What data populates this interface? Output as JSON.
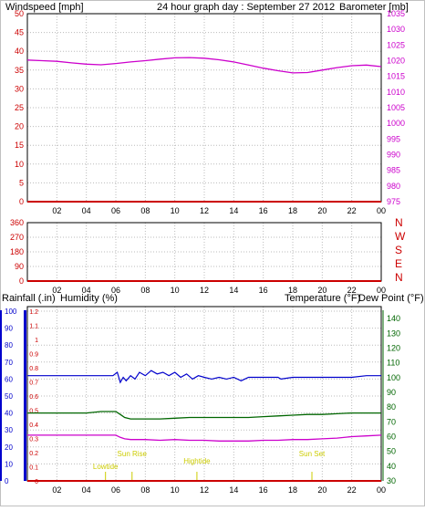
{
  "colors": {
    "windspeed": "#cc0000",
    "barometer": "#cc00cc",
    "title": "#0000cc",
    "direction": "#cc0000",
    "rainfall": "#cc0000",
    "humidity": "#0000cc",
    "temperature": "#006600",
    "dewpoint": "#cc00cc",
    "sun": "#cccc00"
  },
  "chart_data": [
    {
      "type": "line",
      "title": "24 hour graph day : September 27 2012",
      "ylabel_left": "Windspeed [mph]",
      "ylabel_right": "Barometer [mb]",
      "x_ticks": [
        "02",
        "04",
        "06",
        "08",
        "10",
        "12",
        "14",
        "16",
        "18",
        "20",
        "22",
        "00"
      ],
      "y_left_ticks": [
        "0",
        "5",
        "10",
        "15",
        "20",
        "25",
        "30",
        "35",
        "40",
        "45",
        "50"
      ],
      "y_left_lim": [
        0,
        50
      ],
      "y_right_ticks": [
        "975",
        "980",
        "985",
        "990",
        "995",
        "1000",
        "1005",
        "1010",
        "1015",
        "1020",
        "1025",
        "1030",
        "1035"
      ],
      "y_right_lim": [
        975,
        1035
      ],
      "grid": true,
      "series": [
        {
          "name": "Barometer",
          "x": [
            0,
            1,
            2,
            3,
            4,
            5,
            6,
            7,
            8,
            9,
            10,
            11,
            12,
            13,
            14,
            15,
            16,
            17,
            18,
            19,
            20,
            21,
            22,
            23,
            24
          ],
          "y": [
            1020.2,
            1020.0,
            1019.8,
            1019.3,
            1018.9,
            1018.7,
            1019.1,
            1019.6,
            1020.0,
            1020.5,
            1020.9,
            1021.0,
            1020.8,
            1020.3,
            1019.6,
            1018.6,
            1017.6,
            1016.8,
            1016.1,
            1016.2,
            1017.0,
            1017.8,
            1018.4,
            1018.6,
            1018.1
          ]
        },
        {
          "name": "Windspeed",
          "x": [
            0,
            24
          ],
          "y": [
            0,
            0
          ]
        }
      ]
    },
    {
      "type": "line",
      "ylabel_right": "N W S E N",
      "direction_labels": [
        "N",
        "W",
        "S",
        "E",
        "N"
      ],
      "x_ticks": [
        "02",
        "04",
        "06",
        "08",
        "10",
        "12",
        "14",
        "16",
        "18",
        "20",
        "22",
        "00"
      ],
      "y_ticks": [
        "0",
        "90",
        "180",
        "270",
        "360"
      ],
      "ylim": [
        0,
        360
      ],
      "grid": true,
      "series": [
        {
          "name": "Wind direction",
          "x": [
            0,
            24
          ],
          "y": [
            0,
            0
          ]
        }
      ]
    },
    {
      "type": "line",
      "ylabel_rainfall": "Rainfall (.in)",
      "ylabel_humidity": "Humidity (%)",
      "ylabel_temperature": "Temperature (°F)",
      "ylabel_dewpoint": "Dew Point (°F)",
      "x_ticks": [
        "02",
        "04",
        "06",
        "08",
        "10",
        "12",
        "14",
        "16",
        "18",
        "20",
        "22",
        "00"
      ],
      "humidity_ticks": [
        "0",
        "10",
        "20",
        "30",
        "40",
        "50",
        "60",
        "70",
        "80",
        "90",
        "100"
      ],
      "humidity_lim": [
        0,
        100
      ],
      "rain_ticks": [
        "0",
        "0.1",
        "0.2",
        "0.3",
        "0.4",
        "0.5",
        "0.6",
        "0.7",
        "0.8",
        "0.9",
        "1",
        "1.1",
        "1.2"
      ],
      "rain_lim": [
        0,
        1.2
      ],
      "temp_ticks": [
        "30",
        "40",
        "50",
        "60",
        "70",
        "80",
        "90",
        "100",
        "110",
        "120",
        "130",
        "140"
      ],
      "temp_lim": [
        30,
        145
      ],
      "grid": true,
      "annotations": [
        {
          "label": "Lowtide",
          "hour": 5.3
        },
        {
          "label": "Sun Rise",
          "hour": 7.1
        },
        {
          "label": "Hightide",
          "hour": 11.5
        },
        {
          "label": "Sun Set",
          "hour": 19.3
        }
      ],
      "series": [
        {
          "name": "Humidity",
          "x": [
            0,
            1,
            2,
            3,
            4,
            5,
            5.8,
            6.1,
            6.3,
            6.5,
            6.7,
            7.0,
            7.3,
            7.6,
            8.0,
            8.4,
            8.8,
            9.2,
            9.6,
            10.0,
            10.4,
            10.8,
            11.2,
            11.6,
            12.0,
            12.5,
            13.0,
            13.5,
            14.0,
            14.5,
            15.0,
            15.5,
            16.0,
            17.0,
            17.2,
            18.0,
            19.0,
            20.0,
            21.0,
            22.0,
            23.0,
            24.0
          ],
          "y": [
            62,
            62,
            62,
            62,
            62,
            62,
            62,
            64,
            58,
            61,
            59,
            62,
            60,
            64,
            62,
            65,
            63,
            64,
            62,
            64,
            61,
            63,
            60,
            62,
            61,
            60,
            61,
            60,
            61,
            59,
            61,
            61,
            61,
            61,
            60,
            61,
            61,
            61,
            61,
            61,
            62,
            62
          ]
        },
        {
          "name": "Temperature",
          "x": [
            0,
            1,
            2,
            3,
            4,
            5,
            6,
            6.3,
            6.6,
            7.0,
            7.5,
            8.0,
            9.0,
            10.0,
            11.0,
            12.0,
            13.0,
            14.0,
            15.0,
            16.0,
            17.0,
            18.0,
            19.0,
            20.0,
            21.0,
            22.0,
            23.0,
            24.0
          ],
          "y": [
            76,
            76,
            76,
            76,
            76,
            77,
            77,
            75,
            73,
            72,
            72,
            72,
            72,
            72.5,
            73,
            73,
            73,
            73,
            73,
            73.5,
            74,
            74.5,
            75,
            75,
            75.5,
            76,
            76,
            76
          ]
        },
        {
          "name": "Dew Point",
          "x": [
            0,
            1,
            2,
            3,
            4,
            5,
            6,
            6.3,
            6.6,
            7.0,
            8.0,
            9.0,
            10.0,
            11.0,
            12.0,
            13.0,
            14.0,
            15.0,
            16.0,
            17.0,
            18.0,
            19.0,
            20.0,
            21.0,
            22.0,
            23.0,
            24.0
          ],
          "y": [
            61,
            61,
            61,
            61,
            61,
            61,
            61,
            59.5,
            58.5,
            58,
            58,
            57.5,
            58,
            57.5,
            57.5,
            57,
            57,
            57,
            57.5,
            57.5,
            58,
            58,
            58.5,
            59,
            60,
            60.5,
            61
          ]
        },
        {
          "name": "Rainfall",
          "x": [
            0,
            24
          ],
          "y": [
            0,
            0
          ]
        }
      ]
    }
  ]
}
